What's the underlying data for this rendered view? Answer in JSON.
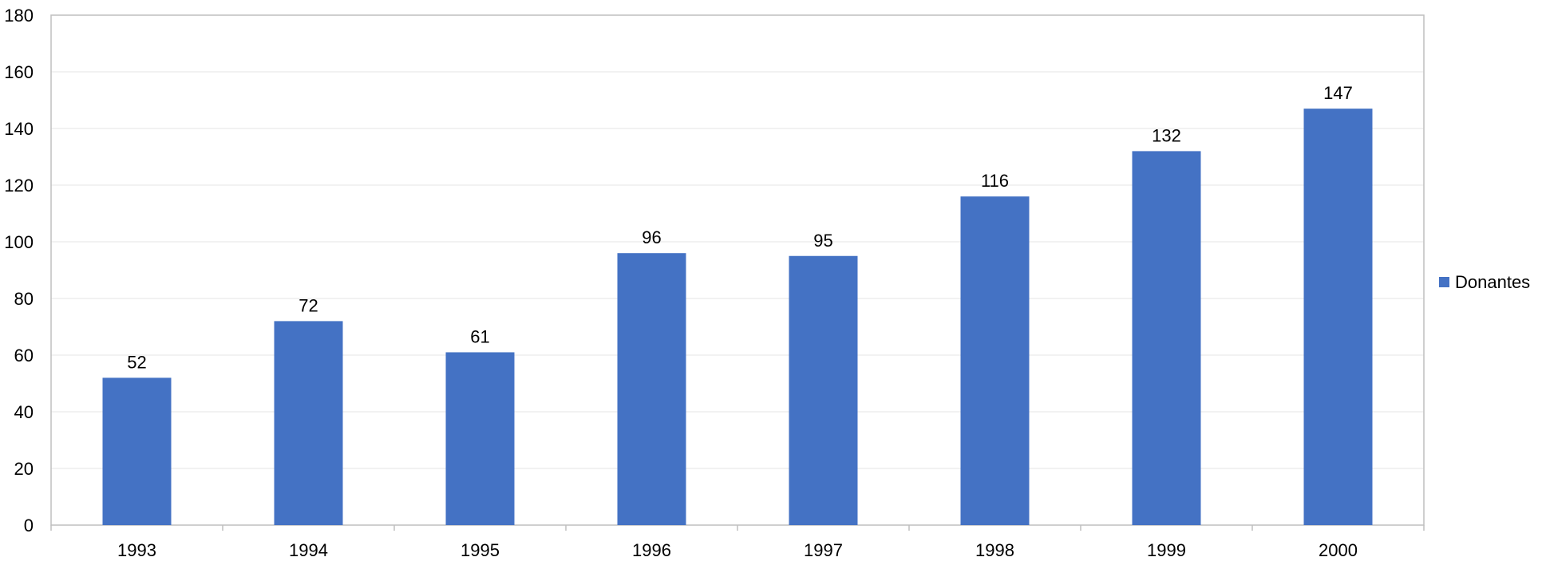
{
  "chart_data": {
    "type": "bar",
    "categories": [
      "1993",
      "1994",
      "1995",
      "1996",
      "1997",
      "1998",
      "1999",
      "2000"
    ],
    "series": [
      {
        "name": "Donantes",
        "values": [
          52,
          72,
          61,
          96,
          95,
          116,
          132,
          147
        ],
        "color": "#4472C4"
      }
    ],
    "title": "",
    "xlabel": "",
    "ylabel": "",
    "ylim": [
      0,
      180
    ],
    "yticks": [
      0,
      20,
      40,
      60,
      80,
      100,
      120,
      140,
      160,
      180
    ],
    "grid": true,
    "legend": "right",
    "data_labels": true
  },
  "colors": {
    "bar": "#4472C4",
    "gridline": "#e6e6e6",
    "axis": "#bfbfbf",
    "plot_border": "#bfbfbf"
  }
}
